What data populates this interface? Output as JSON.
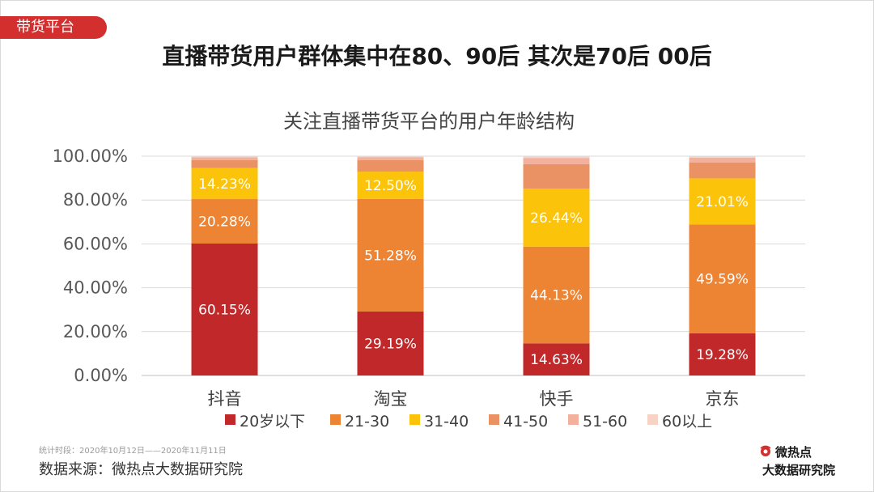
{
  "header": {
    "section_tag": "带货平台",
    "headline": "直播带货用户群体集中在80、90后 其次是70后 00后"
  },
  "chart_data": {
    "type": "bar",
    "stacked": true,
    "title": "关注直播带货平台的用户年龄结构",
    "categories": [
      "抖音",
      "淘宝",
      "快手",
      "京东"
    ],
    "yticks": [
      "0.00%",
      "20.00%",
      "40.00%",
      "60.00%",
      "80.00%",
      "100.00%"
    ],
    "ylim": [
      0,
      100
    ],
    "grid": true,
    "legend_position": "bottom",
    "series": [
      {
        "name": "20岁以下",
        "color": "#c0282a",
        "values": [
          60.15,
          29.19,
          14.63,
          19.28
        ],
        "labels": [
          "60.15%",
          "29.19%",
          "14.63%",
          "19.28%"
        ]
      },
      {
        "name": "21-30",
        "color": "#ec8434",
        "values": [
          20.28,
          51.28,
          44.13,
          49.59
        ],
        "labels": [
          "20.28%",
          "51.28%",
          "44.13%",
          "49.59%"
        ]
      },
      {
        "name": "31-40",
        "color": "#fcc30b",
        "values": [
          14.23,
          12.5,
          26.44,
          21.01
        ],
        "labels": [
          "14.23%",
          "12.50%",
          "26.44%",
          "21.01%"
        ]
      },
      {
        "name": "41-50",
        "color": "#eb9264",
        "values": [
          3.6,
          5.3,
          11.2,
          7.3
        ],
        "labels": [
          "",
          "",
          "",
          ""
        ]
      },
      {
        "name": "51-60",
        "color": "#f3b09c",
        "values": [
          1.2,
          1.3,
          2.8,
          2.1
        ],
        "labels": [
          "",
          "",
          "",
          ""
        ]
      },
      {
        "name": "60以上",
        "color": "#f7d3c6",
        "values": [
          0.54,
          0.43,
          0.8,
          0.72
        ],
        "labels": [
          "",
          "",
          "",
          ""
        ]
      }
    ]
  },
  "footer": {
    "period": "统计时段：2020年10月12日——2020年11月11日",
    "source": "数据来源：微热点大数据研究院"
  },
  "logo": {
    "line1": "微热点",
    "line2": "大数据研究院"
  }
}
